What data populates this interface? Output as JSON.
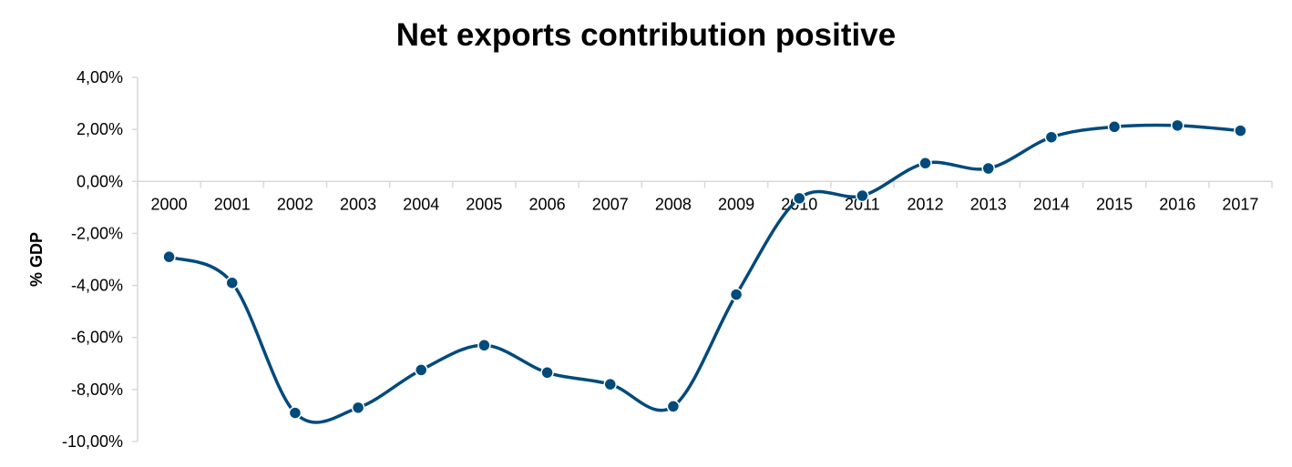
{
  "chart_data": {
    "type": "line",
    "title": "Net exports contribution positive",
    "xlabel": "",
    "ylabel": "% GDP",
    "categories": [
      "2000",
      "2001",
      "2002",
      "2003",
      "2004",
      "2005",
      "2006",
      "2007",
      "2008",
      "2009",
      "2010",
      "2011",
      "2012",
      "2013",
      "2014",
      "2015",
      "2016",
      "2017"
    ],
    "series": [
      {
        "values": [
          -2.9,
          -3.9,
          -8.9,
          -8.7,
          -7.25,
          -6.3,
          -7.35,
          -7.8,
          -8.65,
          -4.35,
          -0.65,
          -0.55,
          0.7,
          0.5,
          1.7,
          2.1,
          2.15,
          1.95
        ]
      }
    ],
    "ylim": [
      -10,
      4
    ],
    "yticks": [
      4,
      2,
      0,
      -2,
      -4,
      -6,
      -8,
      -10
    ],
    "ytick_labels": [
      "4,00%",
      "2,00%",
      "0,00%",
      "-2,00%",
      "-4,00%",
      "-6,00%",
      "-8,00%",
      "-10,00%"
    ],
    "grid": false,
    "smooth": true,
    "markers": true,
    "legend": "none",
    "colors": {
      "line": "#004A7C",
      "axis": "#D9D9D9"
    }
  }
}
